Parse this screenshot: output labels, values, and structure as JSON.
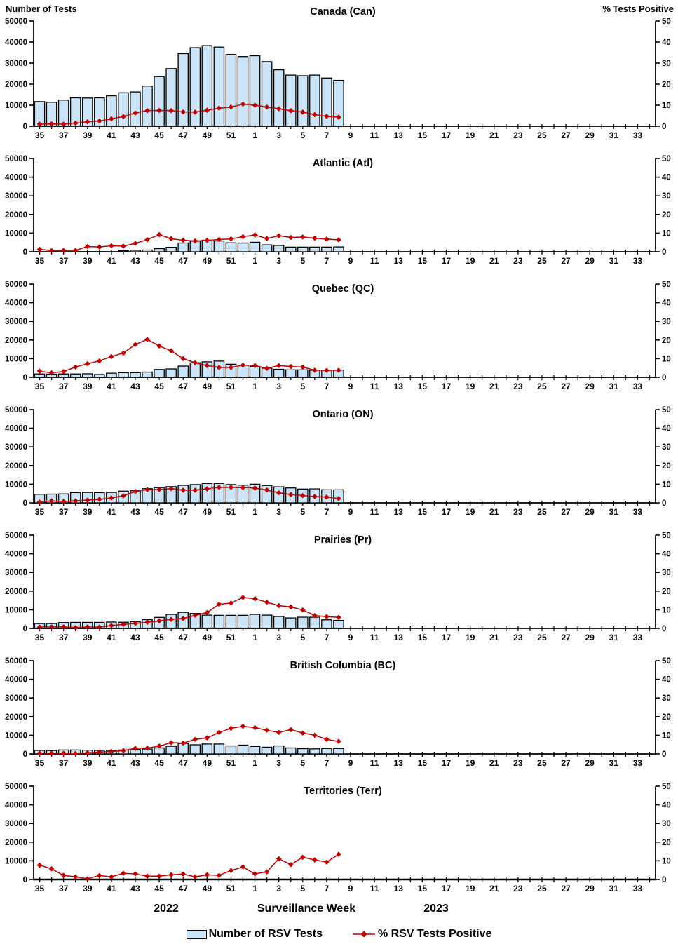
{
  "header": {
    "left_axis_title": "Number of Tests",
    "right_axis_title": "% Tests Positive"
  },
  "footer": {
    "year_left": "2022",
    "axis_title": "Surveillance Week",
    "year_right": "2023"
  },
  "legend": {
    "bar_label": "Number of RSV Tests",
    "line_label": "% RSV Tests Positive"
  },
  "colors": {
    "bar_fill": "#CBE4F7",
    "bar_border": "#000000",
    "line": "#C00000",
    "axis": "#000000",
    "text": "#000000"
  },
  "x_axis": {
    "weeks": [
      35,
      36,
      37,
      38,
      39,
      40,
      41,
      42,
      43,
      44,
      45,
      46,
      47,
      48,
      49,
      50,
      51,
      52,
      1,
      2,
      3,
      4,
      5,
      6,
      7,
      8,
      9,
      10,
      11,
      12,
      13,
      14,
      15,
      16,
      17,
      18,
      19,
      20,
      21,
      22,
      23,
      24,
      25,
      26,
      27,
      28,
      29,
      30,
      31,
      32,
      33,
      34
    ],
    "label_every": 2,
    "data_weeks": [
      35,
      36,
      37,
      38,
      39,
      40,
      41,
      42,
      43,
      44,
      45,
      46,
      47,
      48,
      49,
      50,
      51,
      52,
      1,
      2,
      3,
      4,
      5,
      6,
      7,
      8
    ]
  },
  "left_axis": {
    "min": 0,
    "max": 50000,
    "tick_step": 10000
  },
  "right_axis": {
    "min": 0,
    "max": 50,
    "tick_step": 10
  },
  "chart_data": [
    {
      "type": "combo-bar-line",
      "title": "Canada (Can)",
      "series": [
        {
          "name": "Number of RSV Tests",
          "kind": "bar",
          "axis": "left",
          "values": [
            11700,
            11400,
            12400,
            13500,
            13400,
            13500,
            14500,
            15900,
            16300,
            19100,
            23600,
            27400,
            34500,
            37300,
            38300,
            37600,
            34100,
            33100,
            33500,
            30700,
            26800,
            24300,
            24000,
            24300,
            22900,
            21800
          ]
        },
        {
          "name": "% RSV Tests Positive",
          "kind": "line",
          "axis": "right",
          "values": [
            1.0,
            1.1,
            1.0,
            1.5,
            2.1,
            2.5,
            3.5,
            4.6,
            6.3,
            7.4,
            7.5,
            7.4,
            6.8,
            6.7,
            7.6,
            8.6,
            9.1,
            10.5,
            10.0,
            9.1,
            8.3,
            7.4,
            6.7,
            5.5,
            4.7,
            4.3
          ]
        }
      ]
    },
    {
      "type": "combo-bar-line",
      "title": "Atlantic (Atl)",
      "series": [
        {
          "name": "Number of RSV Tests",
          "kind": "bar",
          "axis": "left",
          "values": [
            250,
            230,
            250,
            260,
            350,
            400,
            450,
            500,
            800,
            950,
            1700,
            2400,
            4700,
            5700,
            6200,
            5800,
            4800,
            4700,
            5100,
            3700,
            3400,
            2500,
            2500,
            2500,
            2500,
            2600
          ]
        },
        {
          "name": "% RSV Tests Positive",
          "kind": "line",
          "axis": "right",
          "values": [
            1.3,
            0.6,
            0.7,
            0.7,
            2.8,
            2.6,
            3.2,
            3.0,
            4.5,
            6.5,
            9.2,
            7.0,
            6.2,
            5.8,
            6.1,
            6.6,
            6.9,
            8.1,
            9.0,
            7.1,
            8.6,
            7.7,
            7.9,
            7.3,
            6.8,
            6.4
          ]
        }
      ]
    },
    {
      "type": "combo-bar-line",
      "title": "Quebec (QC)",
      "series": [
        {
          "name": "Number of RSV Tests",
          "kind": "bar",
          "axis": "left",
          "values": [
            1800,
            1700,
            1800,
            1800,
            1900,
            1500,
            2200,
            2500,
            2500,
            2800,
            4200,
            4500,
            6000,
            7800,
            8300,
            8700,
            7000,
            6500,
            5800,
            4900,
            4300,
            4000,
            4000,
            3800,
            3800,
            3900
          ]
        },
        {
          "name": "% RSV Tests Positive",
          "kind": "line",
          "axis": "right",
          "values": [
            3.3,
            2.4,
            3.1,
            5.5,
            7.3,
            8.8,
            11.1,
            13.0,
            17.6,
            20.3,
            16.8,
            14.2,
            10.0,
            7.8,
            6.3,
            5.3,
            5.3,
            6.5,
            6.3,
            4.8,
            6.3,
            5.8,
            5.5,
            3.8,
            3.7,
            3.8
          ]
        }
      ]
    },
    {
      "type": "combo-bar-line",
      "title": "Ontario (ON)",
      "series": [
        {
          "name": "Number of RSV Tests",
          "kind": "bar",
          "axis": "left",
          "values": [
            4600,
            4700,
            4800,
            5500,
            5600,
            5500,
            5600,
            6300,
            6500,
            7600,
            8200,
            8700,
            9400,
            9800,
            10400,
            10400,
            9800,
            9500,
            10000,
            9300,
            8600,
            8000,
            7400,
            7500,
            7000,
            7000
          ]
        },
        {
          "name": "% RSV Tests Positive",
          "kind": "line",
          "axis": "right",
          "values": [
            0.4,
            1.1,
            0.7,
            1.1,
            1.5,
            1.9,
            2.6,
            3.8,
            6.1,
            7.1,
            7.2,
            7.6,
            6.8,
            6.8,
            7.5,
            8.3,
            8.3,
            8.2,
            7.9,
            6.9,
            5.4,
            4.5,
            3.9,
            3.4,
            3.1,
            2.3
          ]
        }
      ]
    },
    {
      "type": "combo-bar-line",
      "title": "Prairies (Pr)",
      "series": [
        {
          "name": "Number of RSV Tests",
          "kind": "bar",
          "axis": "left",
          "values": [
            2600,
            2600,
            3100,
            3200,
            3200,
            3200,
            3400,
            3300,
            3600,
            4700,
            5900,
            7500,
            8600,
            8000,
            7100,
            7000,
            7000,
            7000,
            7500,
            7100,
            6400,
            5600,
            6000,
            6000,
            4600,
            4300
          ]
        },
        {
          "name": "% RSV Tests Positive",
          "kind": "line",
          "axis": "right",
          "values": [
            0.7,
            0.8,
            0.8,
            0.4,
            0.8,
            0.7,
            1.5,
            2.1,
            2.7,
            3.3,
            4.0,
            4.8,
            5.3,
            7.0,
            8.5,
            12.9,
            13.6,
            16.6,
            15.9,
            14.0,
            12.2,
            11.5,
            9.9,
            6.9,
            6.3,
            5.9
          ]
        }
      ]
    },
    {
      "type": "combo-bar-line",
      "title": "British Columbia (BC)",
      "series": [
        {
          "name": "Number of RSV Tests",
          "kind": "bar",
          "axis": "left",
          "values": [
            1900,
            1800,
            2100,
            2100,
            2000,
            1900,
            1900,
            2100,
            2400,
            2600,
            3200,
            4100,
            5600,
            4900,
            5300,
            5300,
            4300,
            4700,
            4000,
            3600,
            4300,
            3200,
            2800,
            2700,
            2900,
            2900
          ]
        },
        {
          "name": "% RSV Tests Positive",
          "kind": "line",
          "axis": "right",
          "values": [
            0.3,
            0.4,
            0.3,
            0.2,
            0.6,
            1.0,
            1.3,
            1.8,
            3.0,
            3.1,
            4.2,
            6.0,
            5.8,
            7.8,
            8.6,
            11.5,
            13.7,
            14.8,
            14.1,
            12.7,
            11.5,
            13.0,
            11.2,
            10.0,
            7.8,
            6.7
          ]
        }
      ]
    },
    {
      "type": "combo-bar-line",
      "title": "Territories (Terr)",
      "series": [
        {
          "name": "Number of RSV Tests",
          "kind": "bar",
          "axis": "left",
          "values": [
            60,
            50,
            50,
            40,
            40,
            50,
            60,
            50,
            60,
            50,
            60,
            70,
            80,
            70,
            80,
            70,
            60,
            70,
            60,
            60,
            70,
            60,
            50,
            60,
            60,
            60
          ]
        },
        {
          "name": "% RSV Tests Positive",
          "kind": "line",
          "axis": "right",
          "values": [
            7.7,
            5.7,
            2.2,
            1.4,
            0.4,
            2.1,
            1.4,
            3.3,
            3.0,
            1.8,
            1.8,
            2.5,
            2.9,
            1.4,
            2.5,
            2.2,
            4.8,
            6.7,
            3.0,
            4.1,
            11.1,
            8.0,
            11.9,
            10.5,
            9.3,
            13.5
          ]
        }
      ]
    }
  ]
}
